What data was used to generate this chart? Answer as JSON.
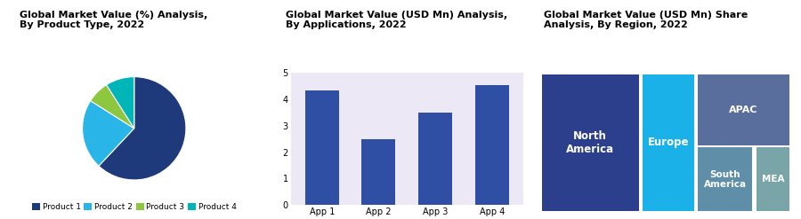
{
  "pie_title": "Global Market Value (%) Analysis,\nBy Product Type, 2022",
  "pie_labels": [
    "Product 1",
    "Product 2",
    "Product 3",
    "Product 4"
  ],
  "pie_sizes": [
    62,
    22,
    7,
    9
  ],
  "pie_colors": [
    "#1f3a7a",
    "#29b5e8",
    "#8dc63f",
    "#00b5b8"
  ],
  "bar_title": "Global Market Value (USD Mn) Analysis,\nBy Applications, 2022",
  "bar_categories": [
    "App 1",
    "App 2",
    "App 3",
    "App 4"
  ],
  "bar_values": [
    4.35,
    2.5,
    3.5,
    4.55
  ],
  "bar_color": "#2e4fa3",
  "bar_ylim": [
    0,
    5
  ],
  "bar_yticks": [
    0,
    1,
    2,
    3,
    4,
    5
  ],
  "tree_title": "Global Market Value (USD Mn) Share\nAnalysis, By Region, 2022",
  "tree_labels": [
    "North\nAmerica",
    "Europe",
    "APAC",
    "South\nAmerica",
    "MEA"
  ],
  "tree_colors": [
    "#2b3f8c",
    "#1ab0e8",
    "#5a6e9e",
    "#5f8fa8",
    "#7aa5a8"
  ],
  "tree_values": [
    40,
    22,
    20,
    11,
    7
  ],
  "header_bg": "#ede8f5",
  "chart_bg": "#e8e8e8",
  "title_fontsize": 8.0,
  "title_fontweight": "bold",
  "legend_fontsize": 6.5
}
